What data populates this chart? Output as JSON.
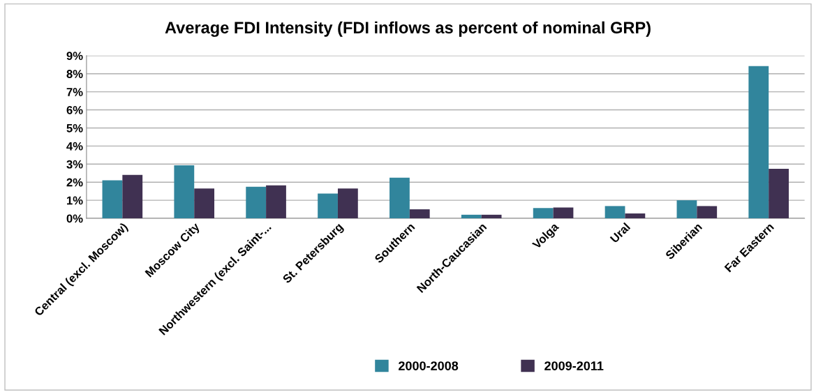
{
  "chart_data": {
    "type": "bar",
    "title": "Average FDI Intensity (FDI inflows as percent of nominal GRP)",
    "categories": [
      "Central (excl. Moscow)",
      "Moscow City",
      "Northwestern (excl. Saint-...",
      "St. Petersburg",
      "Southern",
      "North-Caucasian",
      "Volga",
      "Ural",
      "Siberian",
      "Far Eastern"
    ],
    "series": [
      {
        "name": "2000-2008",
        "color": "#31859c",
        "values": [
          2.1,
          2.93,
          1.75,
          1.37,
          2.25,
          0.2,
          0.57,
          0.68,
          1.0,
          8.42
        ]
      },
      {
        "name": "2009-2011",
        "color": "#403152",
        "values": [
          2.4,
          1.65,
          1.82,
          1.65,
          0.5,
          0.2,
          0.6,
          0.27,
          0.68,
          2.74
        ]
      }
    ],
    "ylim": [
      0,
      9
    ],
    "yticks": [
      {
        "value": 0,
        "label": "0%"
      },
      {
        "value": 1,
        "label": "1%"
      },
      {
        "value": 2,
        "label": "2%"
      },
      {
        "value": 3,
        "label": "3%"
      },
      {
        "value": 4,
        "label": "4%"
      },
      {
        "value": 5,
        "label": "5%"
      },
      {
        "value": 6,
        "label": "6%"
      },
      {
        "value": 7,
        "label": "7%"
      },
      {
        "value": 8,
        "label": "8%"
      },
      {
        "value": 9,
        "label": "9%"
      }
    ],
    "grid": "y",
    "legend": "bottom"
  }
}
